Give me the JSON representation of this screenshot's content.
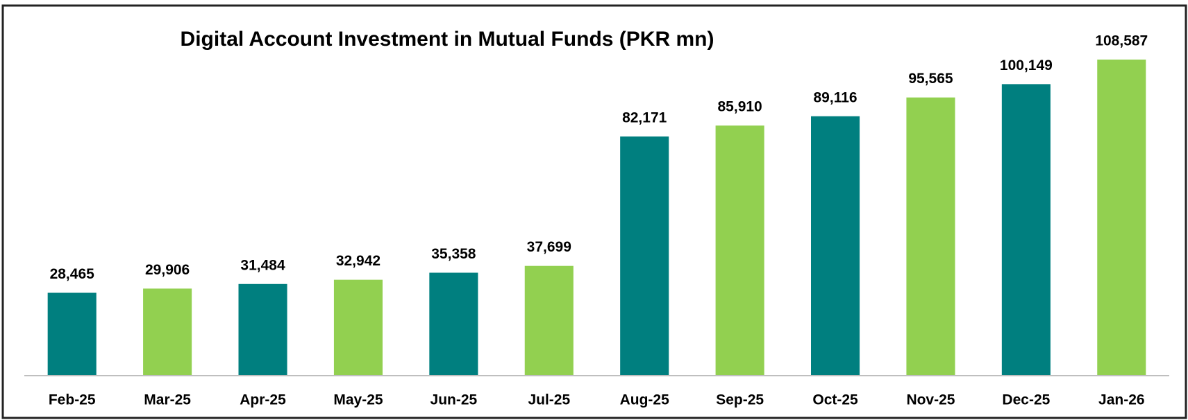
{
  "chart_data": {
    "type": "bar",
    "title": "Digital Account Investment in Mutual Funds (PKR mn)",
    "categories": [
      "Feb-25",
      "Mar-25",
      "Apr-25",
      "May-25",
      "Jun-25",
      "Jul-25",
      "Aug-25",
      "Sep-25",
      "Oct-25",
      "Nov-25",
      "Dec-25",
      "Jan-26"
    ],
    "values": [
      28465,
      29906,
      31484,
      32942,
      35358,
      37699,
      82171,
      85910,
      89116,
      95565,
      100149,
      108587
    ],
    "value_labels": [
      "28,465",
      "29,906",
      "31,484",
      "32,942",
      "35,358",
      "37,699",
      "82,171",
      "85,910",
      "89,116",
      "95,565",
      "100,149",
      "108,587"
    ],
    "colors": [
      "#007f7f",
      "#92d050",
      "#007f7f",
      "#92d050",
      "#007f7f",
      "#92d050",
      "#007f7f",
      "#92d050",
      "#007f7f",
      "#92d050",
      "#007f7f",
      "#92d050"
    ],
    "ylim": [
      0,
      120000
    ]
  }
}
